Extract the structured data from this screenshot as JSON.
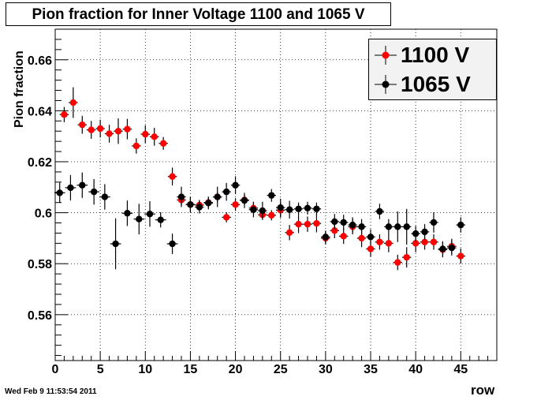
{
  "chart_data": {
    "type": "scatter",
    "title": "Pion fraction for Inner Voltage 1100 and 1065 V",
    "xlabel": "row",
    "ylabel": "Pion fraction",
    "xlim": [
      0,
      49
    ],
    "ylim": [
      0.542,
      0.672
    ],
    "xticks": [
      0,
      5,
      10,
      15,
      20,
      25,
      30,
      35,
      40,
      45
    ],
    "yticks": [
      0.56,
      0.58,
      0.6,
      0.62,
      0.64,
      0.66
    ],
    "ytick_labels": [
      "0.56",
      "0.58",
      "0.6",
      "0.62",
      "0.64",
      "0.66"
    ],
    "grid": true,
    "legend_position": "top-right",
    "series": [
      {
        "name": "1100 V",
        "color": "#ff0000",
        "x": [
          1,
          2,
          3,
          4,
          5,
          6,
          7,
          8,
          9,
          10,
          11,
          12,
          13,
          14,
          15,
          16,
          17,
          18,
          19,
          20,
          21,
          22,
          23,
          24,
          25,
          26,
          27,
          28,
          29,
          30,
          31,
          32,
          33,
          34,
          35,
          36,
          37,
          38,
          39,
          40,
          41,
          42,
          43,
          44,
          45
        ],
        "y": [
          0.6385,
          0.6432,
          0.6345,
          0.6325,
          0.633,
          0.631,
          0.632,
          0.6328,
          0.6262,
          0.6308,
          0.6298,
          0.6272,
          0.6142,
          0.605,
          0.6032,
          0.603,
          0.604,
          0.6062,
          0.5982,
          0.6032,
          0.605,
          0.6018,
          0.5992,
          0.599,
          0.601,
          0.5922,
          0.5955,
          0.5955,
          0.5958,
          0.59,
          0.593,
          0.5908,
          0.5945,
          0.59,
          0.5858,
          0.5885,
          0.588,
          0.5805,
          0.5825,
          0.588,
          0.5885,
          0.5885,
          0.5855,
          0.5868,
          0.583
        ],
        "err": [
          0.003,
          0.006,
          0.0035,
          0.0035,
          0.0035,
          0.0035,
          0.005,
          0.004,
          0.003,
          0.0035,
          0.0035,
          0.0025,
          0.0035,
          0.002,
          0.003,
          0.002,
          0.002,
          0.002,
          0.002,
          0.0025,
          0.002,
          0.0025,
          0.002,
          0.002,
          0.003,
          0.003,
          0.0035,
          0.003,
          0.0035,
          0.0025,
          0.003,
          0.003,
          0.003,
          0.0035,
          0.003,
          0.003,
          0.0035,
          0.003,
          0.004,
          0.0035,
          0.003,
          0.003,
          0.003,
          0.003,
          0.003
        ]
      },
      {
        "name": "1065 V",
        "color": "#000000",
        "x": [
          0.5,
          1.7,
          3,
          4.3,
          5.5,
          6.7,
          8,
          9.3,
          10.5,
          11.7,
          13,
          14,
          15,
          16,
          17,
          18,
          19,
          20,
          21,
          22,
          23,
          24,
          25,
          26,
          27,
          28,
          29,
          30,
          31,
          32,
          33,
          34,
          35,
          36,
          37,
          38,
          39,
          40,
          41,
          42,
          43,
          44,
          45
        ],
        "y": [
          0.6078,
          0.6098,
          0.6108,
          0.6082,
          0.6062,
          0.5878,
          0.5998,
          0.5975,
          0.5995,
          0.5972,
          0.5878,
          0.6062,
          0.6032,
          0.6022,
          0.6038,
          0.6062,
          0.6082,
          0.6108,
          0.6048,
          0.6012,
          0.6008,
          0.6068,
          0.602,
          0.6012,
          0.6015,
          0.6018,
          0.6015,
          0.5905,
          0.5965,
          0.5962,
          0.5952,
          0.5945,
          0.5905,
          0.6005,
          0.5945,
          0.5945,
          0.5945,
          0.5918,
          0.5925,
          0.5962,
          0.5858,
          0.5862,
          0.5952
        ],
        "err": [
          0.004,
          0.005,
          0.005,
          0.005,
          0.005,
          0.01,
          0.005,
          0.006,
          0.005,
          0.003,
          0.004,
          0.004,
          0.003,
          0.0025,
          0.0025,
          0.004,
          0.0035,
          0.0035,
          0.003,
          0.003,
          0.0035,
          0.0025,
          0.0035,
          0.0035,
          0.0025,
          0.0025,
          0.0025,
          0.0025,
          0.003,
          0.003,
          0.003,
          0.003,
          0.003,
          0.003,
          0.003,
          0.006,
          0.007,
          0.003,
          0.003,
          0.004,
          0.003,
          0.003,
          0.003
        ],
        "xerr": [
          0.6,
          0.6,
          0.6,
          0.6,
          0.6,
          0.6,
          0.6,
          0.6,
          0.6,
          0.6,
          0.6,
          0.5,
          0.5,
          0.5,
          0.5,
          0.5,
          0.5,
          0.5,
          0.5,
          0.5,
          0.5,
          0.5,
          0.5,
          0.5,
          0.5,
          0.5,
          0.5,
          0.5,
          0.5,
          0.5,
          0.5,
          0.5,
          0.5,
          0.5,
          0.5,
          0.5,
          0.5,
          0.5,
          0.5,
          0.5,
          0.5,
          0.5,
          0.5
        ]
      }
    ]
  },
  "timestamp": "Wed Feb  9 11:53:54 2011"
}
